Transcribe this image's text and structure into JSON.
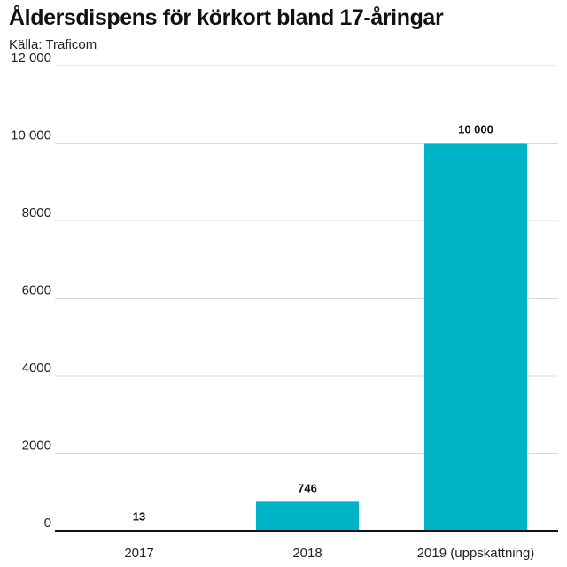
{
  "header": {
    "title": "Åldersdispens för körkort bland 17-åringar",
    "source": "Källa: Traficom"
  },
  "colors": {
    "bar": "#00b4c8",
    "grid": "#d9d9d9",
    "baseline": "#111111"
  },
  "chart_data": {
    "type": "bar",
    "title": "Åldersdispens för körkort bland 17-åringar",
    "subtitle": "Källa: Traficom",
    "categories": [
      "2017",
      "2018",
      "2019 (uppskattning)"
    ],
    "values": [
      13,
      746,
      10000
    ],
    "value_labels": [
      "13",
      "746",
      "10 000"
    ],
    "xlabel": "",
    "ylabel": "",
    "ylim": [
      0,
      12000
    ],
    "yticks": [
      0,
      2000,
      4000,
      6000,
      8000,
      10000,
      12000
    ],
    "ytick_labels": [
      "0",
      "2000",
      "4000",
      "6000",
      "8000",
      "10 000",
      "12 000"
    ],
    "grid": true,
    "legend": "none"
  }
}
